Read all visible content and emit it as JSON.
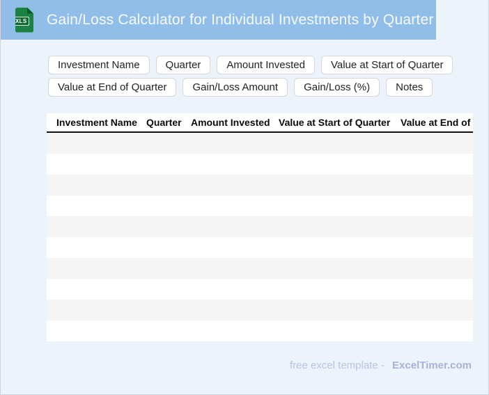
{
  "header": {
    "file_badge": "XLS",
    "title": "Gain/Loss Calculator for Individual Investments by Quarter"
  },
  "field_chips": [
    "Investment Name",
    "Quarter",
    "Amount Invested",
    "Value at Start of Quarter",
    "Value at End of Quarter",
    "Gain/Loss Amount",
    "Gain/Loss (%)",
    "Notes"
  ],
  "table": {
    "columns": [
      "Investment Name",
      "Quarter",
      "Amount Invested",
      "Value at Start of Quarter",
      "Value at End of Quarter"
    ],
    "empty_row_count": 10
  },
  "footer": {
    "label": "free excel template -",
    "brand": "ExcelTimer.com"
  },
  "colors": {
    "banner_blue": "#90bee9",
    "page_background": "#edf3fb",
    "row_stripe": "#f5f5f6",
    "header_rule": "#111111",
    "file_icon_green": "#1d8045",
    "file_badge_green": "#0d6b33",
    "footer_label": "#b7c3e4",
    "footer_brand": "#a6b2d8"
  }
}
